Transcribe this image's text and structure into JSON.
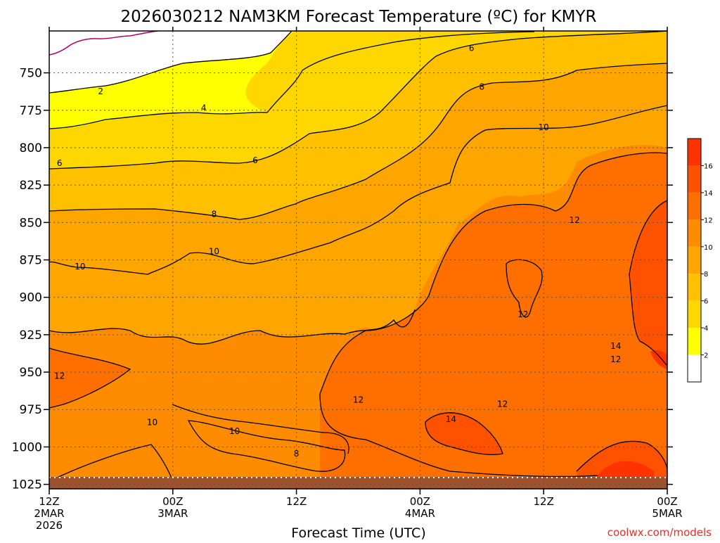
{
  "chart_data": {
    "type": "heatmap",
    "title": "2026030212 NAM3KM Forecast Temperature (ºC) for KMYR",
    "xlabel": "Forecast Time (UTC)",
    "ylabel": "",
    "watermark": "coolwx.com/models",
    "x_hours": [
      0,
      12,
      24,
      36,
      48,
      60
    ],
    "x_ticks": [
      {
        "hour": 0,
        "time": "12Z",
        "date": "2MAR",
        "year": "2026"
      },
      {
        "hour": 12,
        "time": "00Z",
        "date": "3MAR",
        "year": ""
      },
      {
        "hour": 24,
        "time": "12Z",
        "date": "",
        "year": ""
      },
      {
        "hour": 36,
        "time": "00Z",
        "date": "4MAR",
        "year": ""
      },
      {
        "hour": 48,
        "time": "12Z",
        "date": "",
        "year": ""
      },
      {
        "hour": 60,
        "time": "00Z",
        "date": "5MAR",
        "year": ""
      }
    ],
    "y_levels_hpa": [
      750,
      775,
      800,
      825,
      850,
      875,
      900,
      925,
      950,
      975,
      1000,
      1025
    ],
    "y_labels": [
      "750",
      "775",
      "800",
      "825",
      "850",
      "875",
      "900",
      "925",
      "950",
      "975",
      "1000",
      "1025"
    ],
    "xlim": [
      0,
      60
    ],
    "ylim": [
      722,
      1028
    ],
    "contour_levels": [
      0,
      2,
      4,
      6,
      8,
      10,
      12,
      14,
      16
    ],
    "colorbar_labels": [
      "2",
      "4",
      "6",
      "8",
      "10",
      "12",
      "14",
      "16"
    ],
    "band_colors": [
      "#ffffff",
      "#ffff00",
      "#ffd700",
      "#ffc000",
      "#ffa500",
      "#ff8c00",
      "#ff6f00",
      "#ff5200",
      "#ff3300"
    ],
    "ground_color": "#a0522d",
    "zero_line_color": "#b0006e",
    "contour_labels": [
      {
        "text": "2",
        "hour": 5,
        "hpa": 762
      },
      {
        "text": "4",
        "hour": 15,
        "hpa": 773
      },
      {
        "text": "6",
        "hour": 1,
        "hpa": 810
      },
      {
        "text": "6",
        "hour": 20,
        "hpa": 808
      },
      {
        "text": "6",
        "hour": 41,
        "hpa": 733
      },
      {
        "text": "8",
        "hour": 16,
        "hpa": 844
      },
      {
        "text": "8",
        "hour": 42,
        "hpa": 759
      },
      {
        "text": "10",
        "hour": 3,
        "hpa": 879
      },
      {
        "text": "10",
        "hour": 16,
        "hpa": 869
      },
      {
        "text": "10",
        "hour": 48,
        "hpa": 786
      },
      {
        "text": "10",
        "hour": 10,
        "hpa": 983
      },
      {
        "text": "10",
        "hour": 18,
        "hpa": 989
      },
      {
        "text": "8",
        "hour": 24,
        "hpa": 1004
      },
      {
        "text": "12",
        "hour": 1,
        "hpa": 952
      },
      {
        "text": "12",
        "hour": 30,
        "hpa": 968
      },
      {
        "text": "12",
        "hour": 51,
        "hpa": 848
      },
      {
        "text": "12",
        "hour": 46,
        "hpa": 911
      },
      {
        "text": "12",
        "hour": 55,
        "hpa": 941
      },
      {
        "text": "12",
        "hour": 44,
        "hpa": 971
      },
      {
        "text": "14",
        "hour": 39,
        "hpa": 981
      },
      {
        "text": "14",
        "hour": 55,
        "hpa": 932
      }
    ]
  }
}
